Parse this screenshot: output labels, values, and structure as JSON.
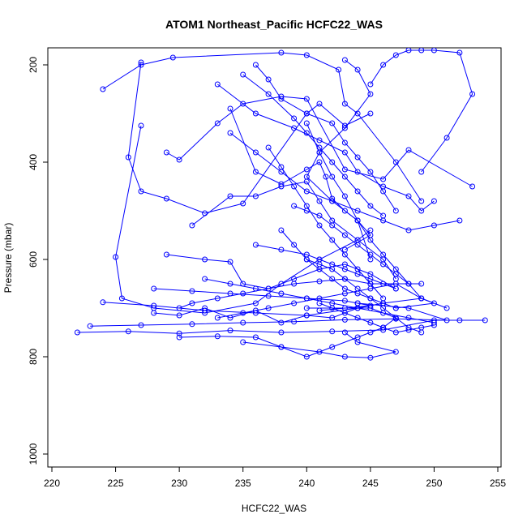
{
  "chart_data": {
    "type": "line",
    "title": "ATOM1 Northeast_Pacific HCFC22_WAS",
    "xlabel": "HCFC22_WAS",
    "ylabel": "Pressure (mbar)",
    "xlim": [
      220,
      255
    ],
    "ylim": [
      1000,
      200
    ],
    "y_reversed": true,
    "xticks": [
      220,
      225,
      230,
      235,
      240,
      245,
      250,
      255
    ],
    "yticks": [
      200,
      400,
      600,
      800,
      1000
    ],
    "grid": false,
    "legend": "none",
    "series_color": "#0000ff",
    "series": [
      {
        "x": [
          224,
          227,
          229.5,
          238,
          240,
          242.5,
          243,
          244,
          247,
          249
        ],
        "y": [
          250,
          200,
          185,
          175,
          180,
          210,
          280,
          300,
          400,
          480
        ]
      },
      {
        "x": [
          227,
          226,
          227,
          229,
          232,
          235,
          240,
          241,
          243,
          245
        ],
        "y": [
          195,
          390,
          460,
          475,
          505,
          485,
          300,
          280,
          325,
          300
        ]
      },
      {
        "x": [
          227,
          225,
          225.5,
          228,
          232,
          236,
          238,
          241,
          244,
          245
        ],
        "y": [
          325,
          595,
          680,
          700,
          710,
          690,
          650,
          600,
          560,
          540
        ]
      },
      {
        "x": [
          234,
          236,
          238,
          240,
          241,
          241.5,
          242,
          243,
          244,
          245
        ],
        "y": [
          290,
          420,
          445,
          415,
          400,
          430,
          475,
          500,
          520,
          600
        ]
      },
      {
        "x": [
          229,
          230,
          233,
          235,
          238,
          240,
          243,
          246,
          248,
          253
        ],
        "y": [
          380,
          395,
          320,
          280,
          265,
          270,
          415,
          435,
          375,
          450
        ]
      },
      {
        "x": [
          231,
          234,
          236,
          238,
          240,
          241,
          242,
          244,
          246,
          247
        ],
        "y": [
          530,
          470,
          470,
          450,
          440,
          480,
          520,
          560,
          600,
          640
        ]
      },
      {
        "x": [
          229,
          232,
          234,
          235,
          237,
          239,
          241,
          243,
          245,
          247
        ],
        "y": [
          590,
          600,
          605,
          650,
          660,
          640,
          620,
          610,
          630,
          660
        ]
      },
      {
        "x": [
          230,
          231,
          233,
          235,
          237,
          239,
          241,
          243,
          245,
          249
        ],
        "y": [
          700,
          690,
          680,
          670,
          660,
          650,
          645,
          640,
          650,
          650
        ]
      },
      {
        "x": [
          228,
          230,
          232,
          234,
          236,
          238,
          240,
          242,
          244,
          246
        ],
        "y": [
          710,
          715,
          700,
          720,
          705,
          730,
          715,
          720,
          700,
          690
        ]
      },
      {
        "x": [
          222,
          226,
          230,
          234,
          238,
          242,
          246,
          250,
          252,
          254
        ],
        "y": [
          750,
          748,
          752,
          746,
          750,
          748,
          745,
          725,
          725,
          725
        ]
      },
      {
        "x": [
          223,
          227,
          231,
          235,
          239,
          243,
          247,
          251,
          248,
          244
        ],
        "y": [
          737,
          735,
          733,
          730,
          728,
          724,
          722,
          725,
          700,
          690
        ]
      },
      {
        "x": [
          224,
          228,
          232,
          236,
          240,
          244,
          246,
          249,
          250,
          247
        ],
        "y": [
          688,
          695,
          705,
          710,
          715,
          700,
          690,
          680,
          690,
          700
        ]
      },
      {
        "x": [
          230,
          233,
          236,
          238,
          241,
          243,
          245,
          247,
          244,
          243
        ],
        "y": [
          760,
          758,
          760,
          780,
          790,
          800,
          802,
          790,
          770,
          750
        ]
      },
      {
        "x": [
          235,
          238,
          240,
          242,
          244,
          245,
          246,
          247,
          245,
          240
        ],
        "y": [
          770,
          780,
          800,
          780,
          760,
          750,
          740,
          720,
          700,
          700
        ]
      },
      {
        "x": [
          233,
          236,
          239,
          241,
          243,
          244,
          246,
          248,
          249,
          250
        ],
        "y": [
          240,
          300,
          330,
          355,
          380,
          420,
          450,
          470,
          500,
          480
        ]
      },
      {
        "x": [
          235,
          237,
          239,
          240,
          241,
          242,
          243,
          244,
          245,
          246
        ],
        "y": [
          220,
          260,
          310,
          340,
          370,
          400,
          430,
          460,
          490,
          510
        ]
      },
      {
        "x": [
          236,
          237,
          238,
          240,
          242,
          243,
          244,
          245,
          246,
          247
        ],
        "y": [
          200,
          230,
          270,
          300,
          320,
          360,
          390,
          420,
          460,
          500
        ]
      },
      {
        "x": [
          240,
          241,
          242,
          243,
          244,
          245,
          246,
          247,
          248,
          249
        ],
        "y": [
          320,
          380,
          430,
          470,
          520,
          560,
          590,
          620,
          650,
          680
        ]
      },
      {
        "x": [
          234,
          236,
          238,
          240,
          242,
          244,
          246,
          248,
          250,
          252
        ],
        "y": [
          340,
          380,
          420,
          460,
          480,
          500,
          520,
          540,
          530,
          520
        ]
      },
      {
        "x": [
          237,
          238,
          239,
          240,
          241,
          242,
          243,
          244,
          245,
          246
        ],
        "y": [
          370,
          410,
          450,
          490,
          530,
          560,
          590,
          620,
          650,
          680
        ]
      },
      {
        "x": [
          238,
          239,
          240,
          241,
          242,
          243,
          244,
          245,
          246,
          247
        ],
        "y": [
          540,
          570,
          600,
          620,
          640,
          660,
          670,
          680,
          690,
          700
        ]
      },
      {
        "x": [
          232,
          234,
          236,
          238,
          240,
          242,
          244,
          246,
          248,
          250
        ],
        "y": [
          640,
          650,
          660,
          670,
          680,
          690,
          700,
          710,
          720,
          730
        ]
      },
      {
        "x": [
          233,
          235,
          237,
          239,
          241,
          243,
          245,
          247,
          249,
          251
        ],
        "y": [
          720,
          710,
          700,
          690,
          680,
          670,
          660,
          650,
          680,
          700
        ]
      },
      {
        "x": [
          228,
          231,
          234,
          237,
          240,
          243,
          244,
          245,
          243,
          241
        ],
        "y": [
          660,
          665,
          670,
          675,
          680,
          685,
          690,
          695,
          700,
          705
        ]
      },
      {
        "x": [
          236,
          238,
          240,
          241,
          242,
          243,
          244,
          245,
          246,
          247
        ],
        "y": [
          570,
          580,
          590,
          600,
          610,
          620,
          630,
          640,
          650,
          660
        ]
      },
      {
        "x": [
          239,
          240,
          241,
          242,
          243,
          244,
          245,
          246,
          247,
          248
        ],
        "y": [
          490,
          500,
          510,
          530,
          550,
          570,
          590,
          610,
          630,
          650
        ]
      },
      {
        "x": [
          240,
          241,
          242,
          243,
          244,
          245,
          246,
          247,
          248,
          249
        ],
        "y": [
          600,
          610,
          620,
          640,
          660,
          680,
          700,
          720,
          740,
          750
        ]
      },
      {
        "x": [
          241,
          242,
          243,
          244,
          245,
          246,
          247,
          248,
          249,
          250
        ],
        "y": [
          690,
          700,
          710,
          720,
          730,
          740,
          750,
          745,
          740,
          735
        ]
      },
      {
        "x": [
          243,
          244,
          245,
          243,
          241,
          240,
          242,
          244,
          245,
          243
        ],
        "y": [
          190,
          210,
          260,
          330,
          380,
          430,
          480,
          520,
          550,
          580
        ]
      },
      {
        "x": [
          245,
          246,
          247,
          248,
          249,
          250,
          252,
          253,
          251,
          249
        ],
        "y": [
          240,
          200,
          180,
          170,
          170,
          170,
          175,
          260,
          350,
          420
        ]
      }
    ]
  }
}
